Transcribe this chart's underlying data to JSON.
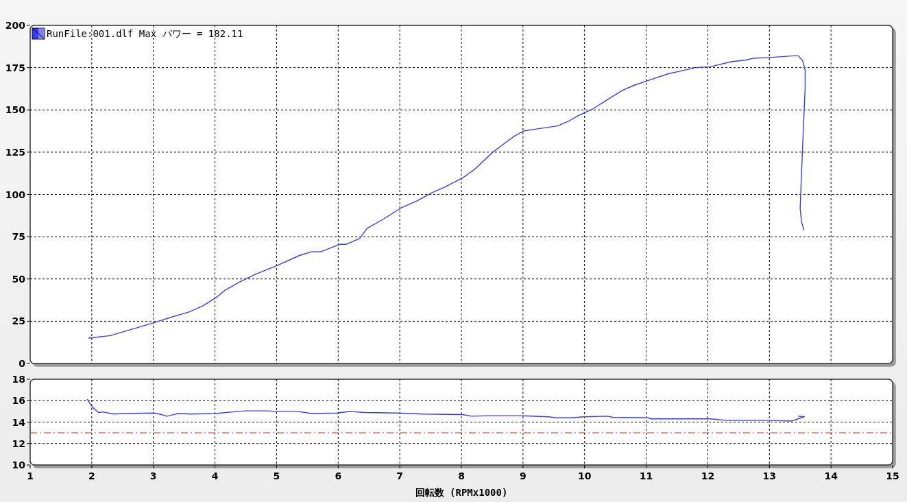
{
  "chart_data": [
    {
      "type": "line",
      "xlim": [
        1,
        15
      ],
      "xticks": [
        1,
        2,
        3,
        4,
        5,
        6,
        7,
        8,
        9,
        10,
        11,
        12,
        13,
        14,
        15
      ],
      "ylim": [
        0,
        200
      ],
      "yticks": [
        0,
        25,
        50,
        75,
        100,
        125,
        150,
        175,
        200
      ],
      "grid": true,
      "legend": "top left",
      "tick_labels": "y",
      "series": [
        {
          "name": "RunFile:001.dlf Max パワー = 182.11",
          "color": "#3a3aff",
          "x": [
            1.95,
            2.3,
            3.0,
            3.3,
            3.58,
            3.8,
            4.02,
            4.17,
            4.39,
            4.64,
            5.01,
            5.38,
            5.56,
            5.71,
            6.03,
            6.13,
            6.35,
            6.47,
            6.74,
            7.02,
            7.27,
            7.52,
            7.74,
            8.03,
            8.22,
            8.51,
            8.84,
            9.01,
            9.18,
            9.56,
            9.75,
            9.89,
            10.13,
            10.37,
            10.61,
            10.8,
            11.04,
            11.37,
            11.56,
            11.8,
            12.04,
            12.38,
            12.62,
            12.73,
            13.0,
            13.4,
            13.47,
            13.54,
            13.58,
            13.58,
            13.55,
            13.51,
            13.5,
            13.52,
            13.56
          ],
          "values": [
            15,
            16.5,
            24,
            27.5,
            30.5,
            34,
            39,
            43.5,
            48,
            52.5,
            58,
            64,
            66,
            66,
            70.5,
            70.5,
            74,
            80,
            85.5,
            92,
            96,
            101,
            104.5,
            110,
            115,
            125,
            134,
            137.5,
            138.5,
            140.5,
            143.5,
            146.5,
            150.5,
            156,
            161.5,
            164.5,
            167.5,
            171.5,
            173,
            175,
            175.5,
            178.5,
            179.5,
            180.5,
            181,
            182,
            182,
            179,
            173.5,
            163,
            137.5,
            102,
            92,
            84,
            79
          ]
        }
      ]
    },
    {
      "type": "line",
      "xlim": [
        1,
        15
      ],
      "xticks": [
        1,
        2,
        3,
        4,
        5,
        6,
        7,
        8,
        9,
        10,
        11,
        12,
        13,
        14,
        15
      ],
      "ylim": [
        10,
        18
      ],
      "yticks": [
        10,
        12,
        14,
        16,
        18
      ],
      "grid": true,
      "xlabel": "回転数 (RPMx1000)",
      "ref_lines": [
        {
          "axis": "y",
          "value": 13,
          "color": "#ff3030",
          "line_style": "dashdot"
        }
      ],
      "series": [
        {
          "color": "#3a3aff",
          "x": [
            1.93,
            2.01,
            2.11,
            2.18,
            2.36,
            2.5,
            3.0,
            3.1,
            3.22,
            3.4,
            3.6,
            3.99,
            4.29,
            4.49,
            4.84,
            4.99,
            5.33,
            5.58,
            5.98,
            6.2,
            6.42,
            6.97,
            7.37,
            8.01,
            8.17,
            8.46,
            8.94,
            9.41,
            9.56,
            9.79,
            9.99,
            10.37,
            10.46,
            11.03,
            11.08,
            12.04,
            12.32,
            12.99,
            13.37,
            13.51,
            13.57,
            13.47
          ],
          "values": [
            16.1,
            15.4,
            14.9,
            14.95,
            14.75,
            14.8,
            14.85,
            14.75,
            14.55,
            14.8,
            14.75,
            14.8,
            14.95,
            15.05,
            15.05,
            15.0,
            15.0,
            14.8,
            14.85,
            15.0,
            14.9,
            14.85,
            14.75,
            14.7,
            14.55,
            14.6,
            14.6,
            14.5,
            14.4,
            14.4,
            14.5,
            14.55,
            14.45,
            14.4,
            14.3,
            14.3,
            14.15,
            14.15,
            14.1,
            14.4,
            14.5,
            14.55
          ]
        }
      ]
    }
  ]
}
